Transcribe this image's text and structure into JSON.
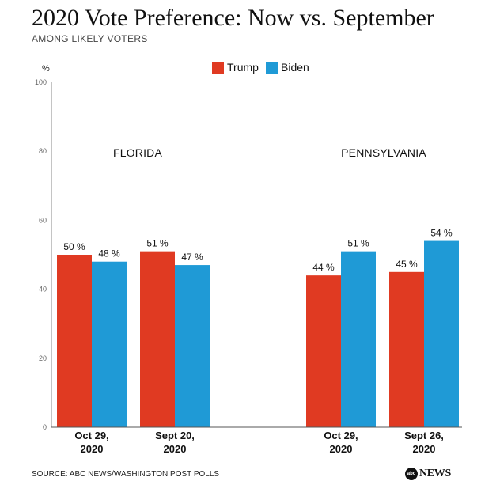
{
  "header": {
    "title": "2020 Vote Preference: Now vs. September",
    "subtitle": "AMONG LIKELY VOTERS"
  },
  "footer": {
    "source": "SOURCE: ABC NEWS/WASHINGTON POST POLLS",
    "logo_text": "NEWS",
    "logo_mark": "abc"
  },
  "colors": {
    "trump": "#e03a22",
    "biden": "#1f9ad6"
  },
  "chart_data": {
    "type": "bar",
    "title": "2020 Vote Preference: Now vs. September",
    "subtitle": "AMONG LIKELY VOTERS",
    "ylabel": "%",
    "ylim": [
      0,
      100
    ],
    "yticks": [
      0,
      20,
      40,
      60,
      80,
      100
    ],
    "legend_position": "top-center",
    "series": [
      {
        "name": "Trump",
        "color": "#e03a22"
      },
      {
        "name": "Biden",
        "color": "#1f9ad6"
      }
    ],
    "groups": [
      {
        "name": "FLORIDA",
        "categories": [
          {
            "label_line1": "Oct 29,",
            "label_line2": "2020",
            "values": [
              50,
              48
            ],
            "labels": [
              "50 %",
              "48 %"
            ]
          },
          {
            "label_line1": "Sept 20,",
            "label_line2": "2020",
            "values": [
              51,
              47
            ],
            "labels": [
              "51 %",
              "47 %"
            ]
          }
        ]
      },
      {
        "name": "PENNSYLVANIA",
        "categories": [
          {
            "label_line1": "Oct 29,",
            "label_line2": "2020",
            "values": [
              44,
              51
            ],
            "labels": [
              "44 %",
              "51 %"
            ]
          },
          {
            "label_line1": "Sept 26,",
            "label_line2": "2020",
            "values": [
              45,
              54
            ],
            "labels": [
              "45 %",
              "54 %"
            ]
          }
        ]
      }
    ]
  }
}
